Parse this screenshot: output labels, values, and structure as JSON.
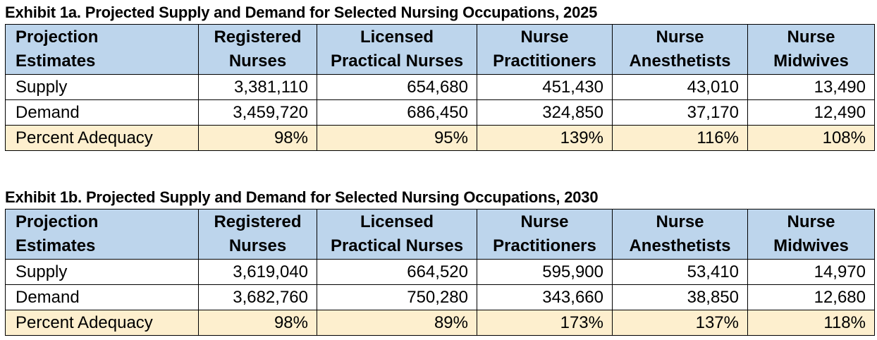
{
  "exhibits": [
    {
      "title": "Exhibit 1a. Projected Supply and Demand for Selected Nursing Occupations, 2025",
      "headers": [
        [
          "Projection",
          "Estimates"
        ],
        [
          "Registered",
          "Nurses"
        ],
        [
          "Licensed",
          "Practical Nurses"
        ],
        [
          "Nurse",
          "Practitioners"
        ],
        [
          "Nurse",
          "Anesthetists"
        ],
        [
          "Nurse",
          "Midwives"
        ]
      ],
      "rows": [
        {
          "label": "Supply",
          "values": [
            "3,381,110",
            "654,680",
            "451,430",
            "43,010",
            "13,490"
          ]
        },
        {
          "label": "Demand",
          "values": [
            "3,459,720",
            "686,450",
            "324,850",
            "37,170",
            "12,490"
          ]
        },
        {
          "label": "Percent Adequacy",
          "values": [
            "98%",
            "95%",
            "139%",
            "116%",
            "108%"
          ]
        }
      ]
    },
    {
      "title": "Exhibit 1b. Projected Supply and Demand for Selected Nursing Occupations, 2030",
      "headers": [
        [
          "Projection",
          "Estimates"
        ],
        [
          "Registered",
          "Nurses"
        ],
        [
          "Licensed",
          "Practical Nurses"
        ],
        [
          "Nurse",
          "Practitioners"
        ],
        [
          "Nurse",
          "Anesthetists"
        ],
        [
          "Nurse",
          "Midwives"
        ]
      ],
      "rows": [
        {
          "label": "Supply",
          "values": [
            "3,619,040",
            "664,520",
            "595,900",
            "53,410",
            "14,970"
          ]
        },
        {
          "label": "Demand",
          "values": [
            "3,682,760",
            "750,280",
            "343,660",
            "38,850",
            "12,680"
          ]
        },
        {
          "label": "Percent Adequacy",
          "values": [
            "98%",
            "89%",
            "173%",
            "137%",
            "118%"
          ]
        }
      ]
    }
  ],
  "colors": {
    "header_bg": "#bdd5ec",
    "adequacy_bg": "#fdefce",
    "border": "#000000"
  }
}
